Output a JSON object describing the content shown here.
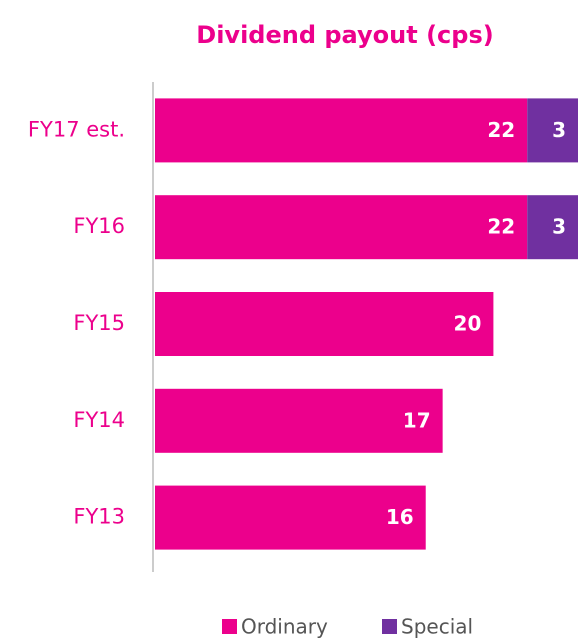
{
  "chart_data": {
    "type": "stacked-barh",
    "title": "Dividend payout (cps)",
    "categories": [
      "FY17 est.",
      "FY16",
      "FY15",
      "FY14",
      "FY13"
    ],
    "series": [
      {
        "name": "Ordinary",
        "color": "#ec008c",
        "values": [
          22,
          22,
          20,
          17,
          16
        ]
      },
      {
        "name": "Special",
        "color": "#7030a0",
        "values": [
          3,
          3,
          null,
          null,
          null
        ]
      }
    ],
    "legend": "bottom"
  }
}
